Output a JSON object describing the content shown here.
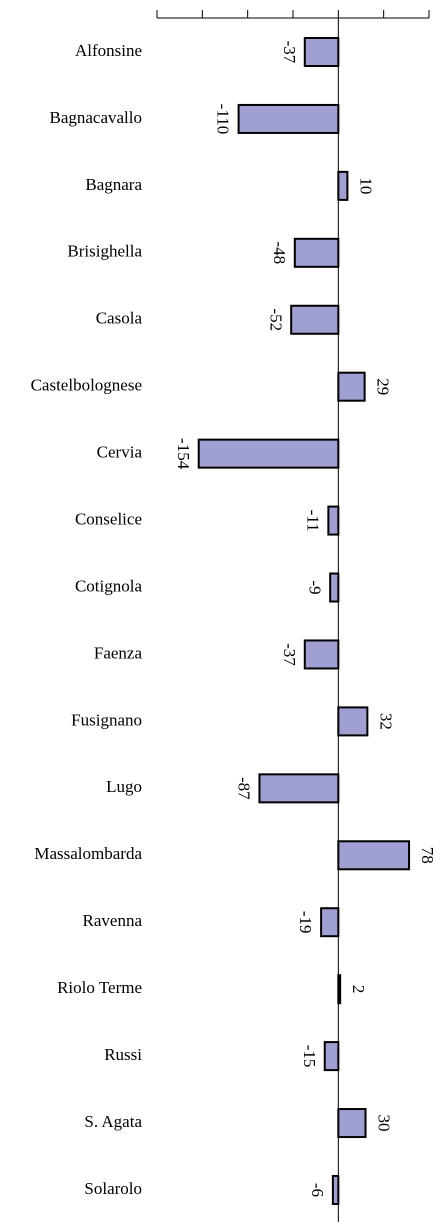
{
  "chart_data": {
    "type": "bar",
    "orientation": "horizontal",
    "categories": [
      "Alfonsine",
      "Bagnacavallo",
      "Bagnara",
      "Brisighella",
      "Casola",
      "Castelbolognese",
      "Cervia",
      "Conselice",
      "Cotignola",
      "Faenza",
      "Fusignano",
      "Lugo",
      "Massalombarda",
      "Ravenna",
      "Riolo Terme",
      "Russi",
      "S. Agata",
      "Solarolo"
    ],
    "values": [
      -37,
      -110,
      10,
      -48,
      -52,
      29,
      -154,
      -11,
      -9,
      -37,
      32,
      -87,
      78,
      -19,
      2,
      -15,
      30,
      -6
    ],
    "color": "#a09fd2",
    "xlim": [
      -200,
      100
    ],
    "xticks": [
      -200,
      -150,
      -100,
      -50,
      0,
      50,
      100
    ]
  }
}
